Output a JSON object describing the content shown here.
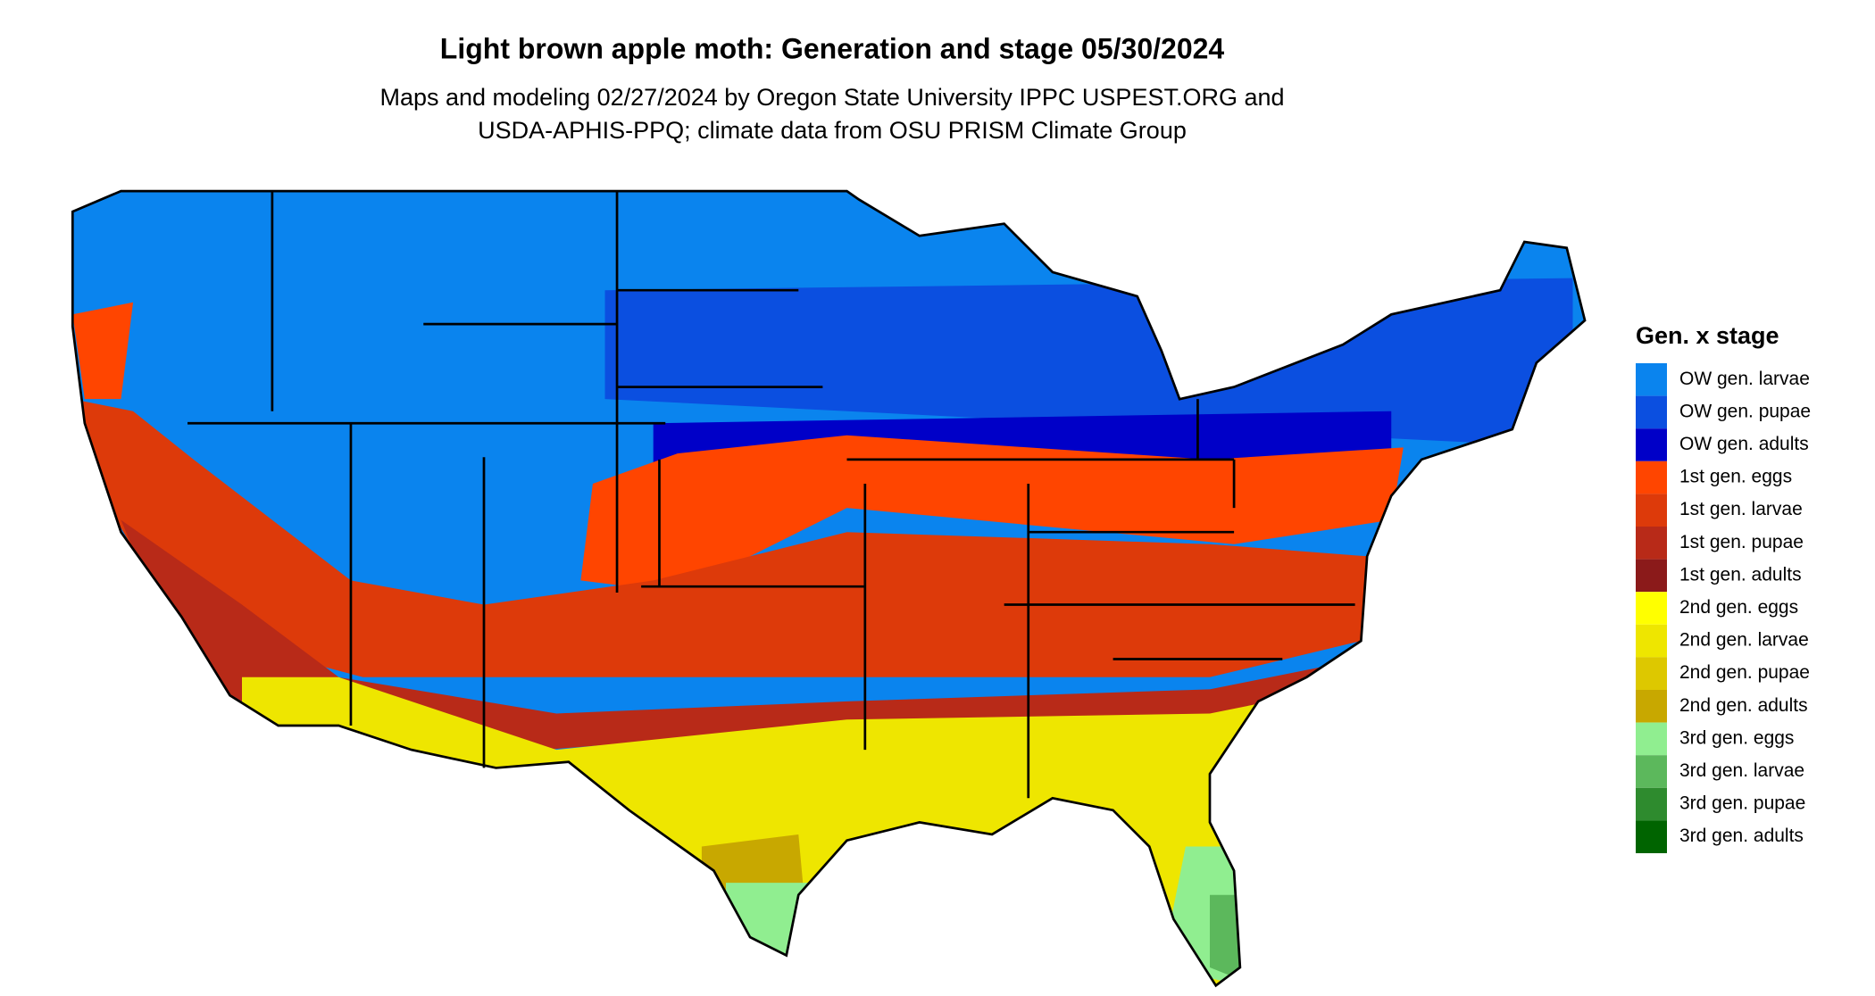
{
  "header": {
    "title": "Light brown apple moth: Generation and stage 05/30/2024",
    "subtitle_lines": [
      "Maps and modeling 02/27/2024 by Oregon State University IPPC USPEST.ORG and",
      "USDA-APHIS-PPQ; climate data from OSU PRISM Climate Group"
    ]
  },
  "legend": {
    "title": "Gen. x stage",
    "items": [
      {
        "label": "OW gen. larvae",
        "color": "#0a84ee"
      },
      {
        "label": "OW gen. pupae",
        "color": "#0b4fe0"
      },
      {
        "label": "OW gen. adults",
        "color": "#0000c8"
      },
      {
        "label": "1st gen. eggs",
        "color": "#ff4500"
      },
      {
        "label": "1st gen. larvae",
        "color": "#dd3a0a"
      },
      {
        "label": "1st gen. pupae",
        "color": "#b82a18"
      },
      {
        "label": "1st gen. adults",
        "color": "#8b1a1a"
      },
      {
        "label": "2nd gen. eggs",
        "color": "#ffff00"
      },
      {
        "label": "2nd gen. larvae",
        "color": "#eee600"
      },
      {
        "label": "2nd gen. pupae",
        "color": "#ddc800"
      },
      {
        "label": "2nd gen. adults",
        "color": "#c8a800"
      },
      {
        "label": "3rd gen. eggs",
        "color": "#90ee90"
      },
      {
        "label": "3rd gen. larvae",
        "color": "#5cb85c"
      },
      {
        "label": "3rd gen. pupae",
        "color": "#2e8b2e"
      },
      {
        "label": "3rd gen. adults",
        "color": "#006400"
      }
    ]
  }
}
